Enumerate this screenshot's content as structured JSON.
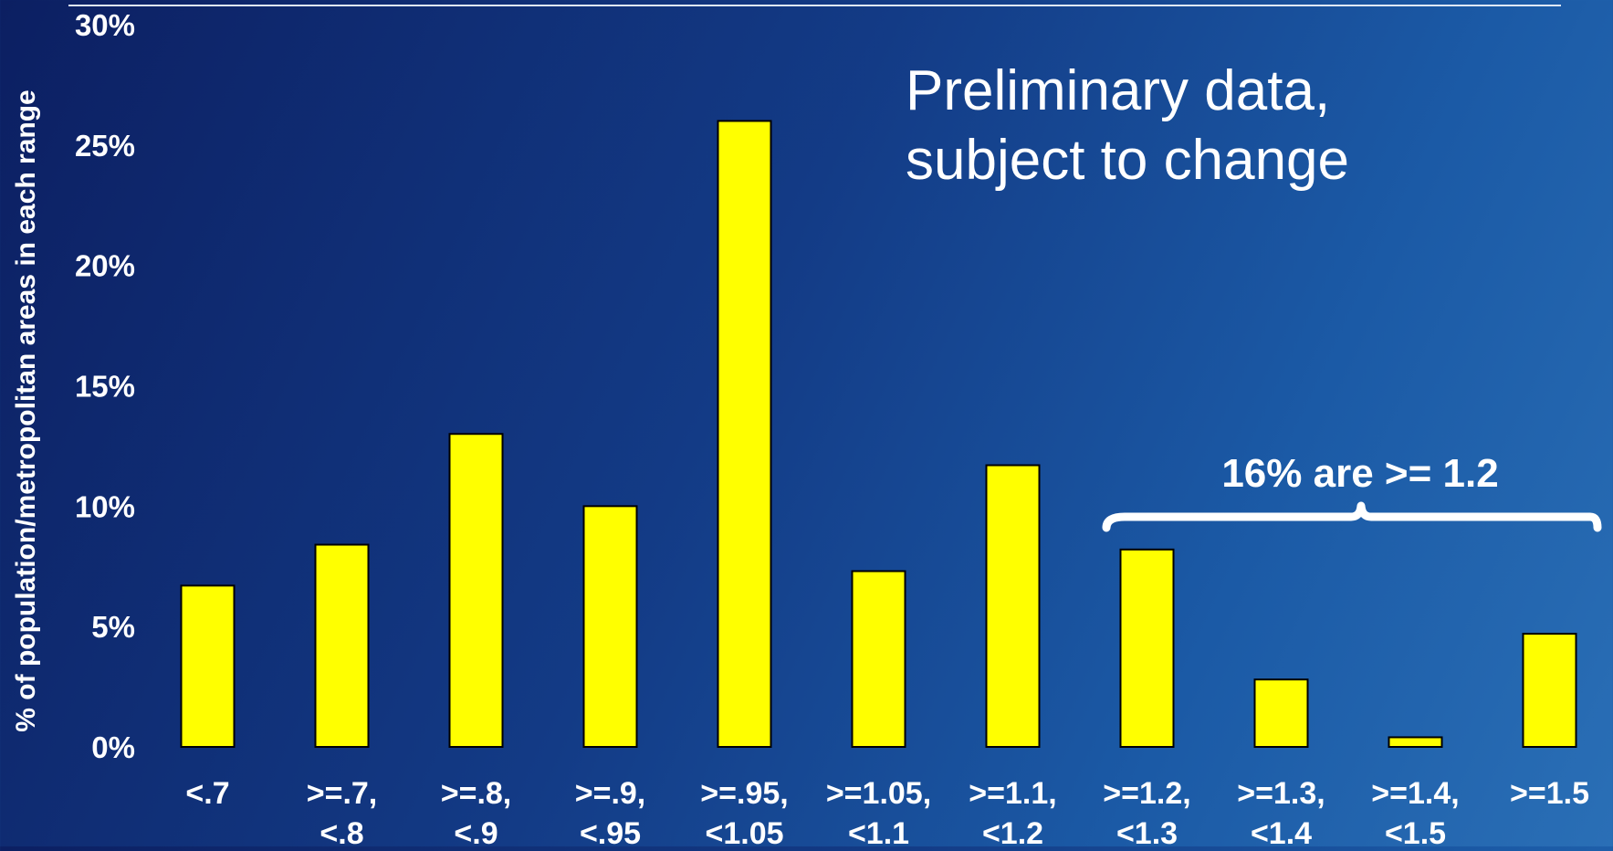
{
  "chart_data": {
    "type": "bar",
    "categories": [
      [
        "<.7"
      ],
      [
        ">=.7,",
        "<.8"
      ],
      [
        ">=.8,",
        "<.9"
      ],
      [
        ">=.9,",
        "<.95"
      ],
      [
        ">=.95,",
        "<1.05"
      ],
      [
        ">=1.05,",
        "<1.1"
      ],
      [
        ">=1.1,",
        "<1.2"
      ],
      [
        ">=1.2,",
        "<1.3"
      ],
      [
        ">=1.3,",
        "<1.4"
      ],
      [
        ">=1.4,",
        "<1.5"
      ],
      [
        ">=1.5"
      ]
    ],
    "values": [
      6.7,
      8.4,
      13.0,
      10.0,
      26.0,
      7.3,
      11.7,
      8.2,
      2.8,
      0.4,
      4.7
    ],
    "ylabel": "% of population/metropolitan areas in each range",
    "yticks": [
      "0%",
      "5%",
      "10%",
      "15%",
      "20%",
      "25%",
      "30%"
    ],
    "ylim": [
      0,
      30
    ],
    "grid": false,
    "annotations": {
      "note_line1": "Preliminary data,",
      "note_line2": "subject to change",
      "brace_label": "16% are >= 1.2"
    },
    "colors": {
      "bar_fill": "#ffff00",
      "bar_stroke": "#000000",
      "text": "#ffffff"
    }
  }
}
